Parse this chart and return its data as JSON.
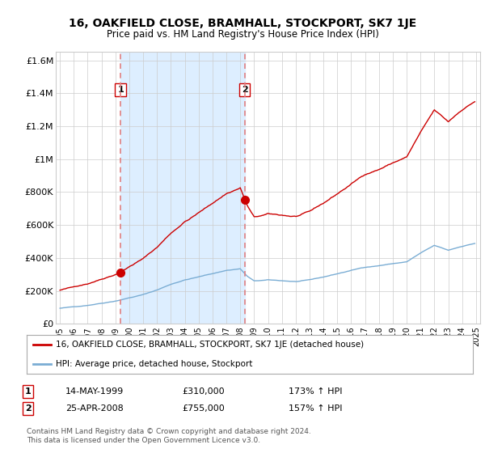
{
  "title": "16, OAKFIELD CLOSE, BRAMHALL, STOCKPORT, SK7 1JE",
  "subtitle": "Price paid vs. HM Land Registry's House Price Index (HPI)",
  "ylabel_ticks": [
    "£0",
    "£200K",
    "£400K",
    "£600K",
    "£800K",
    "£1M",
    "£1.2M",
    "£1.4M",
    "£1.6M"
  ],
  "ytick_values": [
    0,
    200000,
    400000,
    600000,
    800000,
    1000000,
    1200000,
    1400000,
    1600000
  ],
  "ylim": [
    0,
    1650000
  ],
  "sale1_x": 1999.37,
  "sale1_y": 310000,
  "sale1_label": "1",
  "sale2_x": 2008.32,
  "sale2_y": 755000,
  "sale2_label": "2",
  "vline1_x": 1999.37,
  "vline2_x": 2008.32,
  "legend_line1": "16, OAKFIELD CLOSE, BRAMHALL, STOCKPORT, SK7 1JE (detached house)",
  "legend_line2": "HPI: Average price, detached house, Stockport",
  "table_row1_num": "1",
  "table_row1_date": "14-MAY-1999",
  "table_row1_price": "£310,000",
  "table_row1_hpi": "173% ↑ HPI",
  "table_row2_num": "2",
  "table_row2_date": "25-APR-2008",
  "table_row2_price": "£755,000",
  "table_row2_hpi": "157% ↑ HPI",
  "footer": "Contains HM Land Registry data © Crown copyright and database right 2024.\nThis data is licensed under the Open Government Licence v3.0.",
  "line_color_red": "#cc0000",
  "line_color_blue": "#7aadd4",
  "vline_color": "#e08080",
  "shade_color": "#ddeeff",
  "bg_color": "#ffffff",
  "grid_color": "#cccccc",
  "xlim_start": 1994.7,
  "xlim_end": 2025.3
}
